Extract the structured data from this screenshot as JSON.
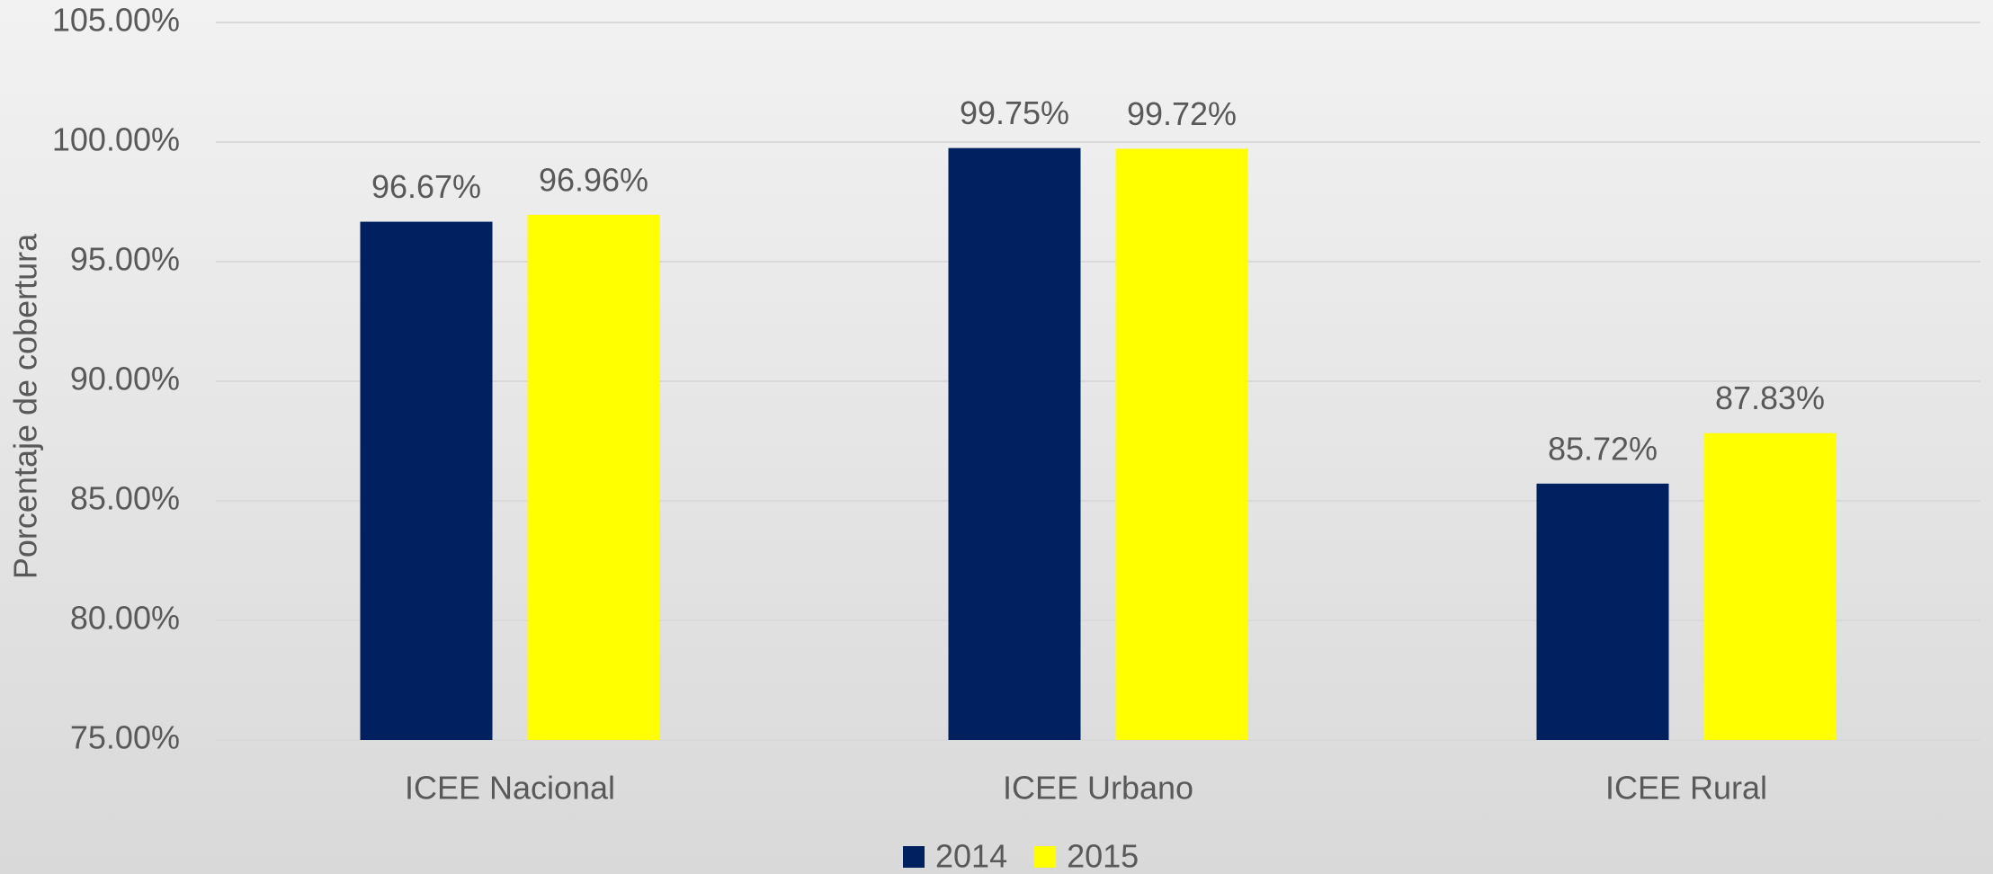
{
  "chart_data": {
    "type": "bar",
    "y_label": "Porcentaje de cobertura",
    "categories": [
      "ICEE Nacional",
      "ICEE Urbano",
      "ICEE Rural"
    ],
    "series": [
      {
        "name": "2014",
        "color": "#002060",
        "values": [
          96.67,
          99.75,
          85.72
        ],
        "value_labels": [
          "96.67%",
          "99.75%",
          "85.72%"
        ]
      },
      {
        "name": "2015",
        "color": "#ffff00",
        "values": [
          96.96,
          99.72,
          87.83
        ],
        "value_labels": [
          "96.96%",
          "99.72%",
          "87.83%"
        ]
      }
    ],
    "ylim": [
      75,
      105
    ],
    "yticks": [
      {
        "value": 75,
        "label": "75.00%"
      },
      {
        "value": 80,
        "label": "80.00%"
      },
      {
        "value": 85,
        "label": "85.00%"
      },
      {
        "value": 90,
        "label": "90.00%"
      },
      {
        "value": 95,
        "label": "95.00%"
      },
      {
        "value": 100,
        "label": "100.00%"
      },
      {
        "value": 105,
        "label": "105.00%"
      }
    ],
    "grid": true,
    "legend": "bottom"
  }
}
